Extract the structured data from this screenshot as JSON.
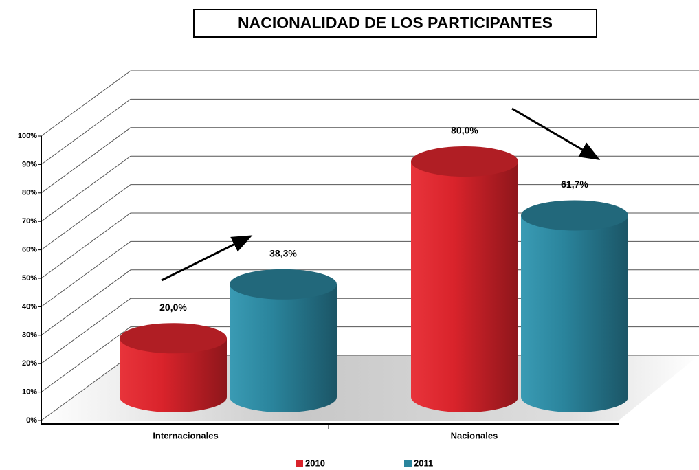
{
  "chart_data": {
    "type": "bar3d",
    "title": "NACIONALIDAD DE LOS PARTICIPANTES",
    "categories": [
      "Internacionales",
      "Nacionales"
    ],
    "series": [
      {
        "name": "2010",
        "color": "#d9232b",
        "values": [
          20,
          80
        ],
        "value_labels": [
          "20,0%",
          "80,0%"
        ]
      },
      {
        "name": "2011",
        "color": "#2a849c",
        "values": [
          38.3,
          61.7
        ],
        "value_labels": [
          "38,3%",
          "61,7%"
        ]
      }
    ],
    "ylim": [
      0,
      100
    ],
    "yticks": [
      {
        "value": 0,
        "label": "0%"
      },
      {
        "value": 10,
        "label": "10%"
      },
      {
        "value": 20,
        "label": "20%"
      },
      {
        "value": 30,
        "label": "30%"
      },
      {
        "value": 40,
        "label": "40%"
      },
      {
        "value": 50,
        "label": "50%"
      },
      {
        "value": 60,
        "label": "60%"
      },
      {
        "value": 70,
        "label": "70%"
      },
      {
        "value": 80,
        "label": "80%"
      },
      {
        "value": 90,
        "label": "90%"
      },
      {
        "value": 100,
        "label": "100%"
      }
    ],
    "grid": true,
    "legend": "bottom"
  }
}
